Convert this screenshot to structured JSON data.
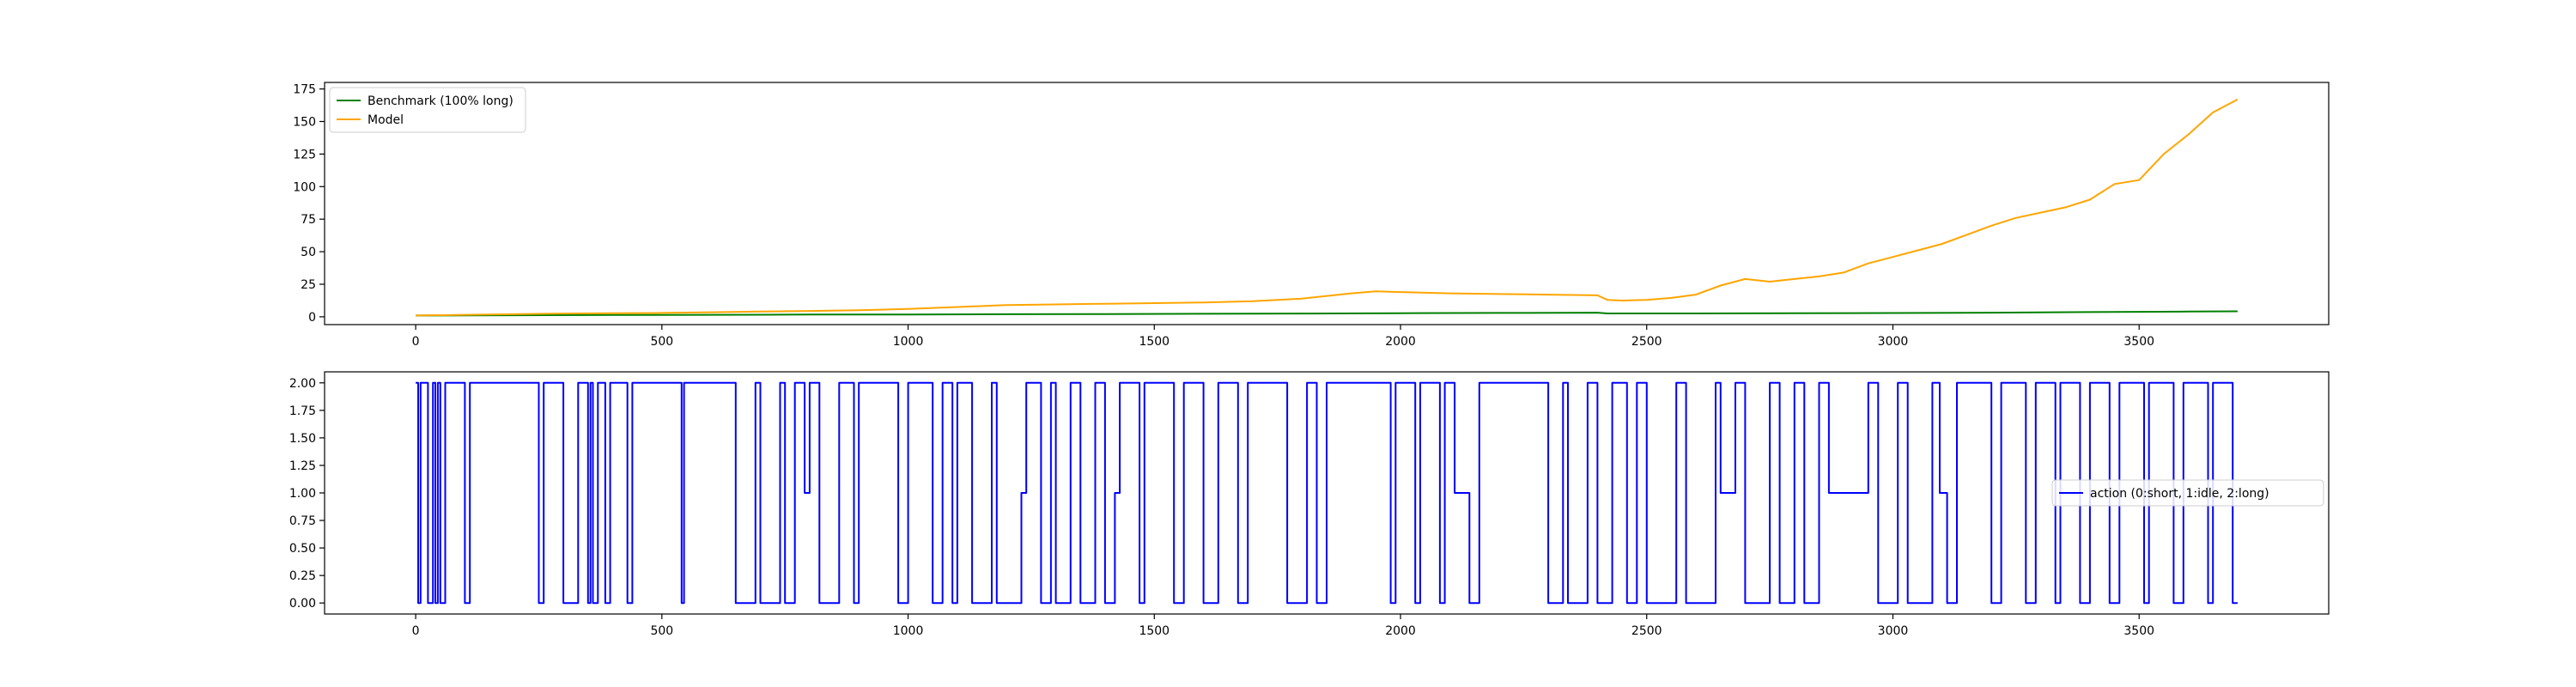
{
  "chart_data": [
    {
      "type": "line",
      "title": "",
      "xlabel": "",
      "ylabel": "",
      "xlim": [
        -185,
        3885
      ],
      "ylim": [
        -6,
        180
      ],
      "xticks": [
        0,
        500,
        1000,
        1500,
        2000,
        2500,
        3000,
        3500
      ],
      "yticks": [
        0,
        25,
        50,
        75,
        100,
        125,
        150,
        175
      ],
      "grid": false,
      "legend_position": "upper-left",
      "series": [
        {
          "name": "Benchmark (100% long)",
          "color": "#008000",
          "x": [
            0,
            200,
            400,
            600,
            800,
            1000,
            1200,
            1400,
            1600,
            1800,
            2000,
            2200,
            2400,
            2420,
            2600,
            2800,
            3000,
            3200,
            3400,
            3500,
            3600,
            3700
          ],
          "y": [
            1.0,
            1.2,
            1.4,
            1.5,
            1.7,
            1.8,
            2.0,
            2.1,
            2.3,
            2.5,
            2.8,
            3.0,
            3.2,
            2.6,
            2.6,
            2.7,
            2.9,
            3.2,
            3.6,
            3.8,
            4.0,
            4.2
          ]
        },
        {
          "name": "Model",
          "color": "#ffa500",
          "x": [
            0,
            100,
            200,
            300,
            400,
            500,
            600,
            700,
            800,
            900,
            1000,
            1100,
            1200,
            1300,
            1400,
            1500,
            1600,
            1700,
            1800,
            1900,
            1950,
            2000,
            2050,
            2100,
            2200,
            2300,
            2400,
            2420,
            2450,
            2500,
            2550,
            2600,
            2650,
            2700,
            2750,
            2800,
            2850,
            2900,
            2950,
            3000,
            3050,
            3100,
            3150,
            3200,
            3250,
            3300,
            3350,
            3400,
            3450,
            3500,
            3550,
            3600,
            3650,
            3700
          ],
          "y": [
            1.0,
            1.5,
            2.0,
            2.5,
            2.8,
            3.0,
            3.5,
            4.0,
            4.5,
            5.0,
            6.0,
            7.5,
            9.0,
            9.5,
            10.0,
            10.5,
            11.0,
            12.0,
            14.0,
            18.0,
            19.5,
            19.0,
            18.5,
            18.0,
            17.5,
            17.0,
            16.5,
            13.0,
            12.5,
            13.0,
            14.5,
            17.0,
            24.0,
            29.0,
            27.0,
            29.0,
            31.0,
            34.0,
            41.0,
            46.0,
            51.0,
            56.0,
            63.0,
            70.0,
            76.0,
            80.0,
            84.0,
            90.0,
            102.0,
            105.0,
            125.0,
            140.0,
            157.0,
            167.0
          ]
        }
      ]
    },
    {
      "type": "line",
      "title": "",
      "xlabel": "",
      "ylabel": "",
      "xlim": [
        -185,
        3885
      ],
      "ylim": [
        -0.1,
        2.1
      ],
      "xticks": [
        0,
        500,
        1000,
        1500,
        2000,
        2500,
        3000,
        3500
      ],
      "yticks": [
        0.0,
        0.25,
        0.5,
        0.75,
        1.0,
        1.25,
        1.5,
        1.75,
        2.0
      ],
      "ytick_labels": [
        "0.00",
        "0.25",
        "0.50",
        "0.75",
        "1.00",
        "1.25",
        "1.50",
        "1.75",
        "2.00"
      ],
      "grid": false,
      "legend_position": "center-right",
      "series": [
        {
          "name": "action (0:short, 1:idle, 2:long)",
          "color": "#0000ff",
          "step": true,
          "x": [
            0,
            5,
            10,
            25,
            35,
            40,
            45,
            50,
            55,
            60,
            100,
            110,
            250,
            260,
            300,
            330,
            350,
            355,
            360,
            370,
            385,
            395,
            430,
            440,
            540,
            545,
            650,
            690,
            700,
            740,
            750,
            770,
            790,
            800,
            820,
            860,
            890,
            900,
            980,
            1000,
            1050,
            1070,
            1090,
            1100,
            1130,
            1170,
            1180,
            1230,
            1240,
            1270,
            1290,
            1300,
            1330,
            1350,
            1380,
            1400,
            1420,
            1430,
            1470,
            1480,
            1540,
            1560,
            1600,
            1630,
            1670,
            1690,
            1770,
            1810,
            1830,
            1850,
            1980,
            1990,
            2030,
            2040,
            2080,
            2090,
            2110,
            2140,
            2160,
            2300,
            2330,
            2340,
            2380,
            2400,
            2430,
            2460,
            2480,
            2500,
            2560,
            2580,
            2640,
            2650,
            2680,
            2700,
            2750,
            2770,
            2800,
            2820,
            2850,
            2870,
            2950,
            2970,
            3010,
            3030,
            3080,
            3095,
            3110,
            3130,
            3200,
            3220,
            3270,
            3290,
            3330,
            3340,
            3380,
            3400,
            3440,
            3460,
            3510,
            3520,
            3570,
            3590,
            3640,
            3650,
            3690,
            3700
          ],
          "y": [
            2,
            0,
            2,
            0,
            2,
            0,
            2,
            0,
            0,
            2,
            0,
            2,
            0,
            2,
            0,
            2,
            0,
            2,
            0,
            2,
            0,
            2,
            0,
            2,
            0,
            2,
            0,
            2,
            0,
            2,
            0,
            2,
            1,
            2,
            0,
            2,
            0,
            2,
            0,
            2,
            0,
            2,
            0,
            2,
            0,
            2,
            0,
            1,
            2,
            0,
            2,
            0,
            2,
            0,
            2,
            0,
            1,
            2,
            0,
            2,
            0,
            2,
            0,
            2,
            0,
            2,
            0,
            2,
            0,
            2,
            0,
            2,
            0,
            2,
            0,
            2,
            1,
            0,
            2,
            0,
            2,
            0,
            2,
            0,
            2,
            0,
            2,
            0,
            2,
            0,
            2,
            1,
            2,
            0,
            2,
            0,
            2,
            0,
            2,
            1,
            2,
            0,
            2,
            0,
            2,
            1,
            0,
            2,
            0,
            2,
            0,
            2,
            0,
            2,
            0,
            2,
            0,
            2,
            0,
            2,
            0,
            2,
            0,
            2,
            0,
            0
          ]
        }
      ]
    }
  ]
}
